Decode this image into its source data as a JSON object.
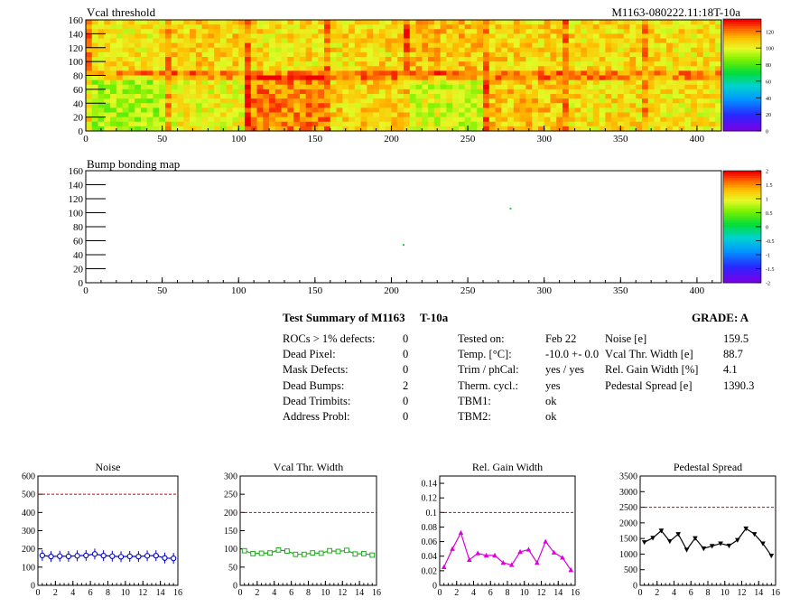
{
  "header": {
    "plot1_title": "Vcal threshold",
    "module_id": "M1163-080222.11:18T-10a",
    "plot2_title": "Bump bonding map"
  },
  "colors": {
    "ref_line": "#d00000",
    "noise_series": "#0000cc",
    "vcal_series": "#22aa22",
    "gain_series": "#dd00dd",
    "pedestal_series": "#000000"
  },
  "chart_data": [
    {
      "type": "heatmap",
      "title": "Vcal threshold",
      "xlim": [
        0,
        416
      ],
      "ylim": [
        0,
        160
      ],
      "x_ticks": [
        "0",
        "50",
        "100",
        "150",
        "200",
        "250",
        "300",
        "350",
        "400"
      ],
      "y_ticks": [
        "0",
        "20",
        "40",
        "60",
        "80",
        "100",
        "120",
        "140",
        "160"
      ],
      "colorbar_ticks": [
        "0",
        "20",
        "40",
        "60",
        "80",
        "100",
        "120"
      ],
      "colorbar_range": [
        0,
        135
      ],
      "roc_grid_columns": 8,
      "roc_grid_rows": 2,
      "roc_mean_values": {
        "top": [
          105,
          108,
          106,
          107,
          112,
          108,
          107,
          106
        ],
        "bottom": [
          92,
          102,
          120,
          108,
          98,
          110,
          106,
          104
        ]
      }
    },
    {
      "type": "heatmap",
      "title": "Bump bonding map",
      "xlim": [
        0,
        416
      ],
      "ylim": [
        0,
        160
      ],
      "x_ticks": [
        "0",
        "50",
        "100",
        "150",
        "200",
        "250",
        "300",
        "350",
        "400"
      ],
      "y_ticks": [
        "0",
        "20",
        "40",
        "60",
        "80",
        "100",
        "120",
        "140",
        "160"
      ],
      "colorbar_ticks": [
        "-2",
        "-1.5",
        "-1",
        "-0.5",
        "0",
        "0.5",
        "1",
        "1.5",
        "2"
      ],
      "colorbar_range": [
        -2,
        2
      ],
      "points": [
        {
          "x": 208,
          "y": 54
        },
        {
          "x": 278,
          "y": 106
        }
      ]
    },
    {
      "type": "line",
      "title": "Noise",
      "x": [
        0,
        1,
        2,
        3,
        4,
        5,
        6,
        7,
        8,
        9,
        10,
        11,
        12,
        13,
        14,
        15
      ],
      "values": [
        164,
        158,
        160,
        159,
        162,
        164,
        172,
        163,
        160,
        157,
        159,
        158,
        162,
        163,
        150,
        148
      ],
      "ref_line": 500,
      "xlim": [
        0,
        16
      ],
      "ylim": [
        0,
        600
      ],
      "x_ticks": [
        "0",
        "2",
        "4",
        "6",
        "8",
        "10",
        "12",
        "14",
        "16"
      ],
      "y_ticks": [
        "0",
        "100",
        "200",
        "300",
        "400",
        "500",
        "600"
      ]
    },
    {
      "type": "line",
      "title": "Vcal Thr. Width",
      "x": [
        0,
        1,
        2,
        3,
        4,
        5,
        6,
        7,
        8,
        9,
        10,
        11,
        12,
        13,
        14,
        15
      ],
      "values": [
        95,
        87,
        88,
        89,
        97,
        94,
        85,
        85,
        89,
        88,
        95,
        93,
        96,
        86,
        87,
        83
      ],
      "ref_line": 200,
      "xlim": [
        0,
        16
      ],
      "ylim": [
        0,
        300
      ],
      "x_ticks": [
        "0",
        "2",
        "4",
        "6",
        "8",
        "10",
        "12",
        "14",
        "16"
      ],
      "y_ticks": [
        "0",
        "50",
        "100",
        "150",
        "200",
        "250",
        "300"
      ]
    },
    {
      "type": "line",
      "title": "Rel. Gain Width",
      "x": [
        0,
        1,
        2,
        3,
        4,
        5,
        6,
        7,
        8,
        9,
        10,
        11,
        12,
        13,
        14,
        15
      ],
      "values": [
        0.025,
        0.05,
        0.072,
        0.035,
        0.044,
        0.041,
        0.041,
        0.031,
        0.028,
        0.046,
        0.049,
        0.031,
        0.06,
        0.045,
        0.038,
        0.021
      ],
      "ref_line": 0.1,
      "xlim": [
        0,
        16
      ],
      "ylim": [
        0,
        0.15
      ],
      "x_ticks": [
        "0",
        "2",
        "4",
        "6",
        "8",
        "10",
        "12",
        "14",
        "16"
      ],
      "y_ticks": [
        "0",
        "0.02",
        "0.04",
        "0.06",
        "0.08",
        "0.1",
        "0.12",
        "0.14"
      ]
    },
    {
      "type": "line",
      "title": "Pedestal Spread",
      "x": [
        0,
        1,
        2,
        3,
        4,
        5,
        6,
        7,
        8,
        9,
        10,
        11,
        12,
        13,
        14,
        15
      ],
      "values": [
        1380,
        1520,
        1750,
        1410,
        1640,
        1140,
        1510,
        1180,
        1260,
        1340,
        1270,
        1450,
        1820,
        1640,
        1340,
        950
      ],
      "ref_line": 2500,
      "xlim": [
        0,
        16
      ],
      "ylim": [
        0,
        3500
      ],
      "x_ticks": [
        "0",
        "2",
        "4",
        "6",
        "8",
        "10",
        "12",
        "14",
        "16"
      ],
      "y_ticks": [
        "0",
        "500",
        "1000",
        "1500",
        "2000",
        "2500",
        "3000",
        "3500"
      ]
    }
  ],
  "summary": {
    "title_a": "Test Summary of M1163",
    "title_b": "T-10a",
    "grade": "GRADE:  A",
    "col1_labels": [
      "ROCs > 1% defects:",
      "Dead Pixel:",
      "Mask Defects:",
      "Dead Bumps:",
      "Dead Trimbits:",
      "Address Probl:"
    ],
    "col1_values": [
      "0",
      "0",
      "0",
      "2",
      "0",
      "0"
    ],
    "col2_labels": [
      "Tested on:",
      "Temp. [°C]:",
      "Trim / phCal:",
      "Therm. cycl.:",
      "TBM1:",
      "TBM2:"
    ],
    "col2_values": [
      "Feb 22",
      "-10.0 +- 0.0",
      "yes / yes",
      "yes",
      "ok",
      "ok"
    ],
    "col3_labels": [
      "Noise [e]",
      "Vcal Thr. Width [e]",
      "Rel. Gain Width [%]",
      "Pedestal Spread [e]"
    ],
    "col3_values": [
      "159.5",
      "88.7",
      "4.1",
      "1390.3"
    ]
  }
}
